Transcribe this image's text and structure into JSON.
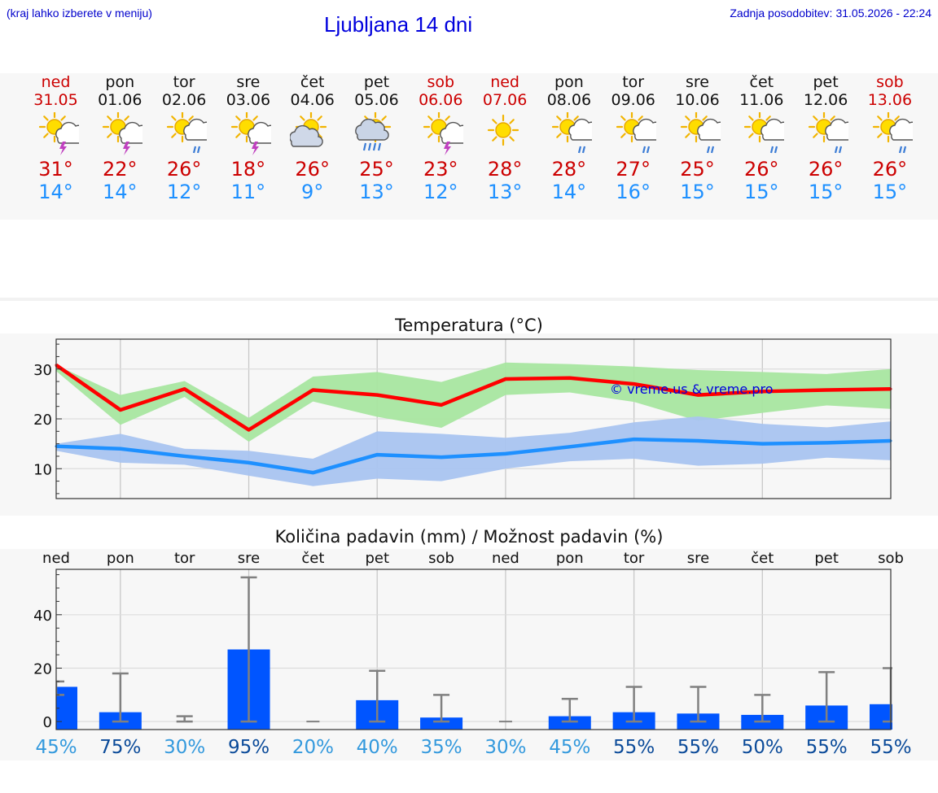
{
  "header": {
    "location_note": "(kraj lahko izberete v meniju)",
    "title": "Ljubljana 14 dni",
    "updated_label": "Zadnja posodobitev:",
    "updated_value": "31.05.2026 - 22:24"
  },
  "colors": {
    "max_line": "#ff0000",
    "max_band": "#a8e6a0",
    "min_line": "#1e90ff",
    "min_band": "#a9c4f0",
    "bar": "#0055ff",
    "errbar": "#808080",
    "weekend": "#cc0000",
    "prob_low": "#3399dd",
    "prob_high": "#0a4a99"
  },
  "days": [
    {
      "name": "ned",
      "date": "31.05",
      "weekend": true,
      "icon": "sun-cloud-thunder-icon",
      "tmax": "31°",
      "tmin": "14°"
    },
    {
      "name": "pon",
      "date": "01.06",
      "weekend": false,
      "icon": "sun-cloud-thunder-icon",
      "tmax": "22°",
      "tmin": "14°"
    },
    {
      "name": "tor",
      "date": "02.06",
      "weekend": false,
      "icon": "sun-cloud-rain-icon",
      "tmax": "26°",
      "tmin": "12°"
    },
    {
      "name": "sre",
      "date": "03.06",
      "weekend": false,
      "icon": "sun-cloud-thunder-icon",
      "tmax": "18°",
      "tmin": "11°"
    },
    {
      "name": "čet",
      "date": "04.06",
      "weekend": false,
      "icon": "sun-cloud-icon",
      "tmax": "26°",
      "tmin": "9°"
    },
    {
      "name": "pet",
      "date": "05.06",
      "weekend": false,
      "icon": "sun-cloud-heavy-rain-icon",
      "tmax": "25°",
      "tmin": "13°"
    },
    {
      "name": "sob",
      "date": "06.06",
      "weekend": true,
      "icon": "sun-cloud-thunder-icon",
      "tmax": "23°",
      "tmin": "12°"
    },
    {
      "name": "ned",
      "date": "07.06",
      "weekend": true,
      "icon": "sun-icon",
      "tmax": "28°",
      "tmin": "13°"
    },
    {
      "name": "pon",
      "date": "08.06",
      "weekend": false,
      "icon": "sun-cloud-rain-icon",
      "tmax": "28°",
      "tmin": "14°"
    },
    {
      "name": "tor",
      "date": "09.06",
      "weekend": false,
      "icon": "sun-cloud-rain-icon",
      "tmax": "27°",
      "tmin": "16°"
    },
    {
      "name": "sre",
      "date": "10.06",
      "weekend": false,
      "icon": "sun-cloud-rain-icon",
      "tmax": "25°",
      "tmin": "15°"
    },
    {
      "name": "čet",
      "date": "11.06",
      "weekend": false,
      "icon": "sun-cloud-rain-icon",
      "tmax": "26°",
      "tmin": "15°"
    },
    {
      "name": "pet",
      "date": "12.06",
      "weekend": false,
      "icon": "sun-cloud-rain-icon",
      "tmax": "26°",
      "tmin": "15°"
    },
    {
      "name": "sob",
      "date": "13.06",
      "weekend": true,
      "icon": "sun-cloud-rain-icon",
      "tmax": "26°",
      "tmin": "15°"
    }
  ],
  "chart_data": [
    {
      "type": "line",
      "title": "Temperatura (°C)",
      "watermark": "© vreme.us & vreme.pro",
      "x": [
        0,
        1,
        2,
        3,
        4,
        5,
        6,
        7,
        8,
        9,
        10,
        11,
        12,
        13
      ],
      "ylim": [
        4,
        36
      ],
      "yticks": [
        10,
        20,
        30
      ],
      "grid": true,
      "series": [
        {
          "key": "max",
          "values": [
            30.8,
            21.8,
            26,
            17.8,
            25.8,
            24.8,
            22.8,
            28,
            28.2,
            27,
            24.8,
            25.5,
            25.8,
            26
          ],
          "band_high": [
            30.8,
            24.8,
            27.6,
            20.2,
            28.5,
            29.4,
            27.4,
            31.3,
            31,
            30.5,
            29.8,
            29.4,
            29,
            30
          ],
          "band_low": [
            29.6,
            18.8,
            24.4,
            15.4,
            23.5,
            20.4,
            18.2,
            24.8,
            25.3,
            23.4,
            19.6,
            21.2,
            22.7,
            22
          ]
        },
        {
          "key": "min",
          "values": [
            14.5,
            14,
            12.5,
            11.2,
            9.2,
            12.8,
            12.3,
            13,
            14.4,
            15.9,
            15.6,
            15,
            15.2,
            15.6
          ],
          "band_high": [
            15,
            17,
            14,
            13.6,
            12,
            17.5,
            17,
            16.2,
            17.2,
            19.3,
            20.5,
            19,
            18.3,
            19.5
          ],
          "band_low": [
            13.6,
            11.2,
            10.8,
            8.6,
            6.5,
            8,
            7.5,
            10,
            11.5,
            12,
            10.6,
            11,
            12.2,
            11.7
          ]
        }
      ]
    },
    {
      "type": "bar",
      "title": "Količina padavin (mm) / Možnost padavin (%)",
      "categories": [
        "ned",
        "pon",
        "tor",
        "sre",
        "čet",
        "pet",
        "sob",
        "ned",
        "pon",
        "tor",
        "sre",
        "čet",
        "pet",
        "sob"
      ],
      "values": [
        13,
        3.5,
        0,
        27,
        0,
        8,
        1.5,
        0,
        2,
        3.5,
        3,
        2.5,
        6,
        6.5
      ],
      "err_high": [
        15,
        18,
        2,
        54,
        0,
        19,
        10,
        0,
        8.5,
        13,
        13,
        10,
        18.5,
        20
      ],
      "err_low": [
        10,
        0,
        0,
        0,
        0,
        0,
        0,
        0,
        0,
        0,
        0,
        0,
        0,
        0
      ],
      "probability": [
        "45%",
        "75%",
        "30%",
        "95%",
        "20%",
        "40%",
        "35%",
        "30%",
        "45%",
        "55%",
        "55%",
        "50%",
        "55%",
        "55%"
      ],
      "ylim": [
        -3,
        57
      ],
      "yticks": [
        0,
        20,
        40
      ],
      "grid": true
    }
  ]
}
